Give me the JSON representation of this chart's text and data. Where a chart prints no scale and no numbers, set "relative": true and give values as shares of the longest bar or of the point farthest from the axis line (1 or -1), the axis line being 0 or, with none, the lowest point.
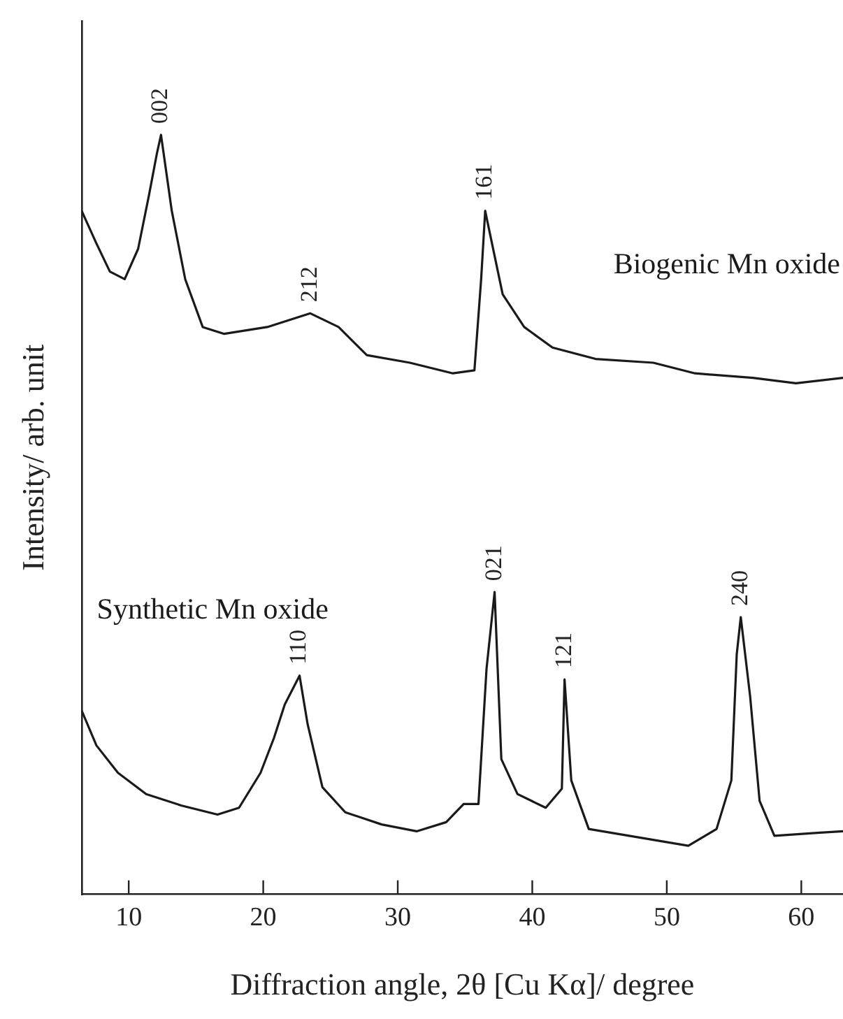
{
  "chart_data": {
    "type": "line",
    "relative": true,
    "xlabel": "Diffraction angle, 2θ [Cu Kα]/ degree",
    "ylabel": "Intensity/ arb. unit",
    "xlim": [
      6.5,
      63.1
    ],
    "xticks": [
      10,
      20,
      30,
      40,
      50,
      60
    ],
    "grid": false,
    "legend": false,
    "marker": "none",
    "line_style": "solid",
    "series": [
      {
        "name": "Biogenic Mn oxide",
        "color": "#1a1a1a",
        "x": [
          6.5,
          7.6,
          8.6,
          9.7,
          10.7,
          11.5,
          12.1,
          12.4,
          13.2,
          14.2,
          15.5,
          17.1,
          20.3,
          23.5,
          25.6,
          27.7,
          30.9,
          34.1,
          35.7,
          36.2,
          36.5,
          36.9,
          37.8,
          39.4,
          41.5,
          44.7,
          49,
          52.1,
          56.4,
          59.6,
          63.1
        ],
        "values": [
          0.9,
          0.857,
          0.82,
          0.81,
          0.85,
          0.92,
          0.976,
          1.0,
          0.9,
          0.81,
          0.747,
          0.738,
          0.747,
          0.765,
          0.747,
          0.71,
          0.7,
          0.686,
          0.69,
          0.81,
          0.9,
          0.866,
          0.79,
          0.747,
          0.72,
          0.705,
          0.7,
          0.686,
          0.68,
          0.673,
          0.68
        ]
      },
      {
        "name": "Synthetic Mn oxide",
        "color": "#1a1a1a",
        "x": [
          6.5,
          7.6,
          9.2,
          11.3,
          13.9,
          16.6,
          18.2,
          19.8,
          20.8,
          21.6,
          22.7,
          23.3,
          24.4,
          26.1,
          28.8,
          31.4,
          33.6,
          34.9,
          36,
          36.6,
          37.2,
          37.7,
          38.9,
          41,
          42.2,
          42.4,
          42.9,
          44.2,
          47.9,
          51.6,
          53.7,
          54.8,
          55.2,
          55.5,
          56.2,
          56.9,
          58,
          61.2,
          63.1
        ],
        "values": [
          0.242,
          0.196,
          0.16,
          0.132,
          0.117,
          0.105,
          0.114,
          0.16,
          0.206,
          0.25,
          0.288,
          0.224,
          0.141,
          0.108,
          0.092,
          0.083,
          0.095,
          0.119,
          0.119,
          0.297,
          0.398,
          0.178,
          0.132,
          0.114,
          0.139,
          0.283,
          0.15,
          0.086,
          0.075,
          0.064,
          0.086,
          0.15,
          0.316,
          0.365,
          0.26,
          0.123,
          0.077,
          0.081,
          0.083
        ]
      }
    ],
    "annotations": [
      {
        "text": "002",
        "x": 12.4,
        "y": 1.0
      },
      {
        "text": "212",
        "x": 23.5,
        "y": 0.765
      },
      {
        "text": "161",
        "x": 36.5,
        "y": 0.9
      },
      {
        "text": "110",
        "x": 22.7,
        "y": 0.288
      },
      {
        "text": "021",
        "x": 37.2,
        "y": 0.398
      },
      {
        "text": "121",
        "x": 42.4,
        "y": 0.283
      },
      {
        "text": "240",
        "x": 55.5,
        "y": 0.365
      }
    ]
  }
}
